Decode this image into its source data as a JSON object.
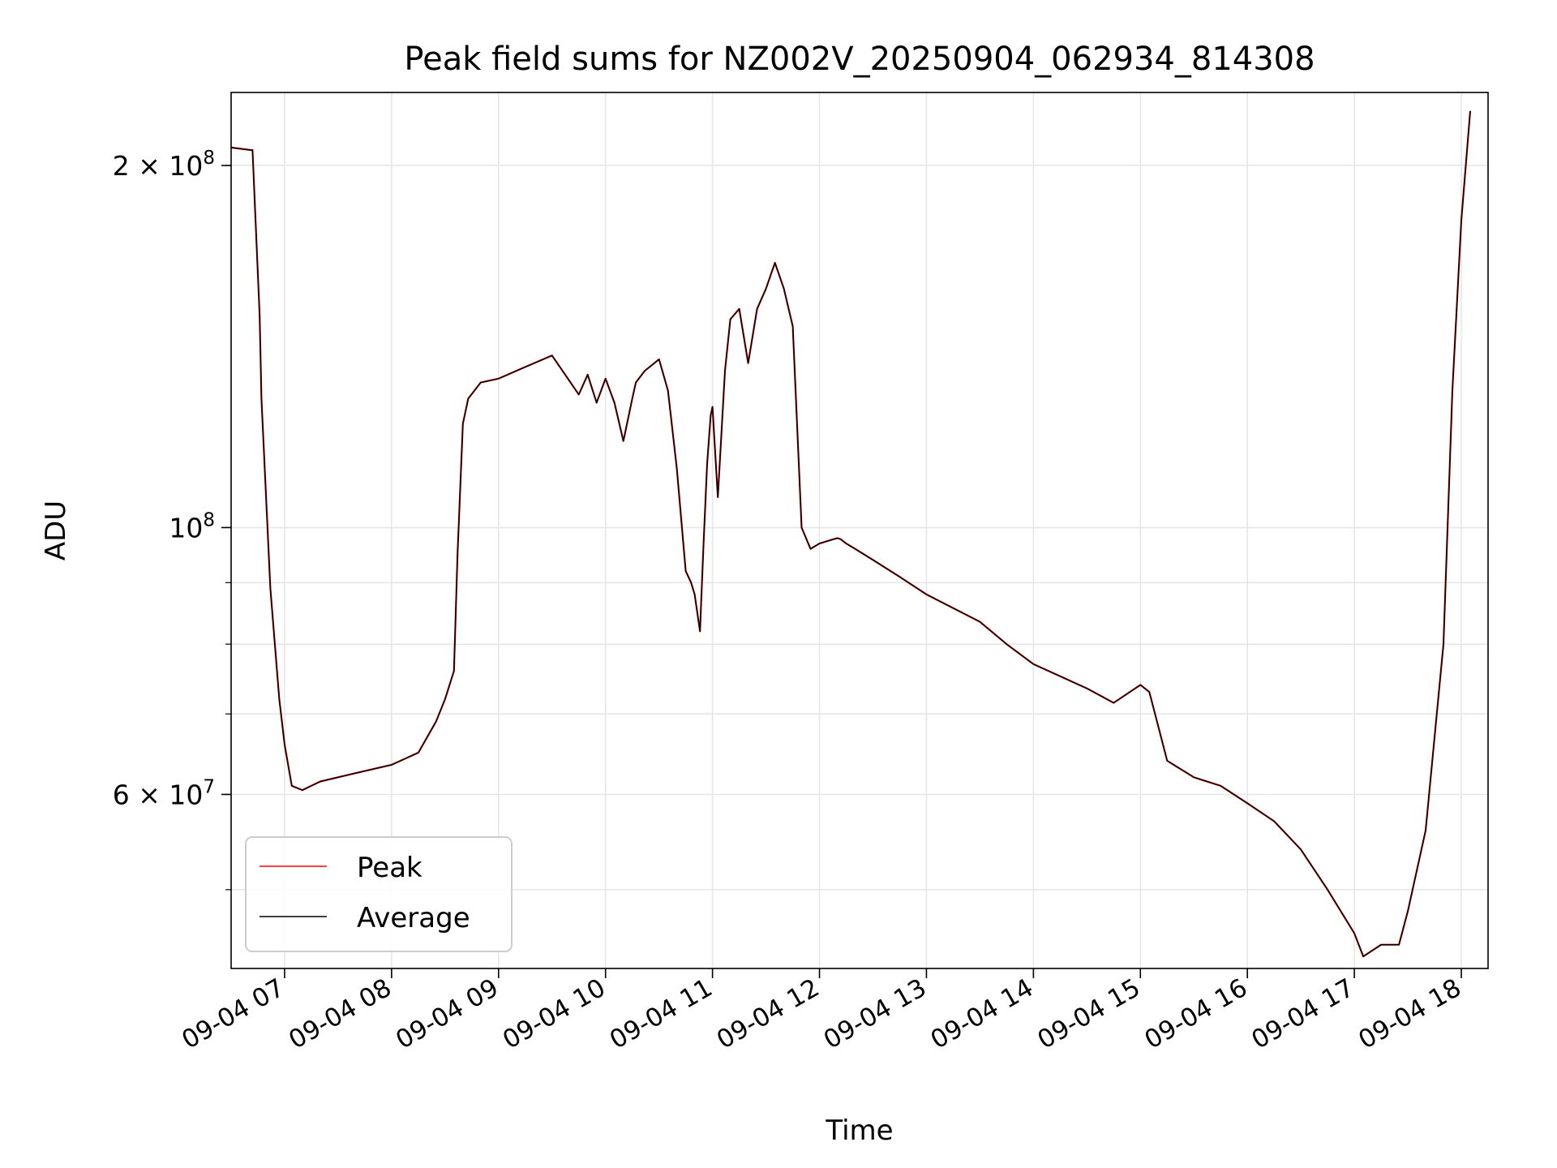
{
  "chart_data": {
    "type": "line",
    "title": "Peak field sums for NZ002V_20250904_062934_814308",
    "xlabel": "Time",
    "ylabel": "ADU",
    "xlim": [
      "2025-09-04 06:30",
      "2025-09-04 18:15"
    ],
    "ylim": [
      43000000,
      230000000
    ],
    "yscale": "log",
    "x_ticks": [
      "09-04 07",
      "09-04 08",
      "09-04 09",
      "09-04 10",
      "09-04 11",
      "09-04 12",
      "09-04 13",
      "09-04 14",
      "09-04 15",
      "09-04 16",
      "09-04 17",
      "09-04 18"
    ],
    "y_ticks": [
      {
        "value": 200000000,
        "mantissa": "2",
        "exponent": "8"
      },
      {
        "value": 100000000,
        "mantissa": "",
        "exponent": "8"
      },
      {
        "value": 60000000,
        "mantissa": "6",
        "exponent": "7"
      }
    ],
    "grid": true,
    "legend_position": "lower-left",
    "x": [
      "06:30",
      "06:41",
      "06:42",
      "06:46",
      "06:47",
      "06:52",
      "06:57",
      "07:00",
      "07:04",
      "07:10",
      "07:20",
      "07:40",
      "08:00",
      "08:15",
      "08:25",
      "08:30",
      "08:35",
      "08:37",
      "08:40",
      "08:43",
      "08:50",
      "09:00",
      "09:15",
      "09:30",
      "09:45",
      "09:50",
      "09:55",
      "10:00",
      "10:05",
      "10:10",
      "10:15",
      "10:17",
      "10:22",
      "10:30",
      "10:35",
      "10:40",
      "10:45",
      "10:48",
      "10:50",
      "10:53",
      "10:55",
      "10:57",
      "10:59",
      "11:00",
      "11:03",
      "11:07",
      "11:10",
      "11:15",
      "11:20",
      "11:25",
      "11:30",
      "11:35",
      "11:40",
      "11:45",
      "11:50",
      "11:55",
      "12:00",
      "12:05",
      "12:10",
      "12:12",
      "12:13",
      "12:15",
      "12:20",
      "12:30",
      "12:45",
      "13:00",
      "13:30",
      "13:45",
      "14:00",
      "14:30",
      "14:45",
      "15:00",
      "15:05",
      "15:15",
      "15:30",
      "15:45",
      "16:00",
      "16:15",
      "16:30",
      "16:45",
      "17:00",
      "17:05",
      "17:15",
      "17:25",
      "17:30",
      "17:40",
      "17:50",
      "17:55",
      "18:00",
      "18:05"
    ],
    "series": [
      {
        "name": "Peak",
        "color": "#ff0000",
        "values": [
          207000000,
          206000000,
          206000000,
          150000000,
          128000000,
          89000000,
          72000000,
          66000000,
          61000000,
          60500000,
          61500000,
          62500000,
          63500000,
          65000000,
          69000000,
          72000000,
          76000000,
          95000000,
          122000000,
          128000000,
          132000000,
          133000000,
          136000000,
          139000000,
          129000000,
          134000000,
          127000000,
          133000000,
          127000000,
          118000000,
          128000000,
          132000000,
          135000000,
          138000000,
          130000000,
          112000000,
          92000000,
          90000000,
          88000000,
          82000000,
          97000000,
          113000000,
          124000000,
          126000000,
          106000000,
          135000000,
          149000000,
          152000000,
          137000000,
          152000000,
          158000000,
          166000000,
          158000000,
          147000000,
          100000000,
          96000000,
          97000000,
          97500000,
          98000000,
          97800000,
          97500000,
          97000000,
          96000000,
          94000000,
          91000000,
          88000000,
          83500000,
          80000000,
          77000000,
          73500000,
          71500000,
          74000000,
          73000000,
          64000000,
          62000000,
          61000000,
          59000000,
          57000000,
          54000000,
          50000000,
          46000000,
          44000000,
          45000000,
          45000000,
          48000000,
          56000000,
          80000000,
          130000000,
          180000000,
          222000000
        ]
      },
      {
        "name": "Average",
        "color": "#000000",
        "values": [
          207000000,
          206000000,
          206000000,
          150000000,
          128000000,
          89000000,
          72000000,
          66000000,
          61000000,
          60500000,
          61500000,
          62500000,
          63500000,
          65000000,
          69000000,
          72000000,
          76000000,
          95000000,
          122000000,
          128000000,
          132000000,
          133000000,
          136000000,
          139000000,
          129000000,
          134000000,
          127000000,
          133000000,
          127000000,
          118000000,
          128000000,
          132000000,
          135000000,
          138000000,
          130000000,
          112000000,
          92000000,
          90000000,
          88000000,
          82000000,
          97000000,
          113000000,
          124000000,
          126000000,
          106000000,
          135000000,
          149000000,
          152000000,
          137000000,
          152000000,
          158000000,
          166000000,
          158000000,
          147000000,
          100000000,
          96000000,
          97000000,
          97500000,
          98000000,
          97800000,
          97500000,
          97000000,
          96000000,
          94000000,
          91000000,
          88000000,
          83500000,
          80000000,
          77000000,
          73500000,
          71500000,
          74000000,
          73000000,
          64000000,
          62000000,
          61000000,
          59000000,
          57000000,
          54000000,
          50000000,
          46000000,
          44000000,
          45000000,
          45000000,
          48000000,
          56000000,
          80000000,
          130000000,
          180000000,
          222000000
        ]
      }
    ]
  }
}
